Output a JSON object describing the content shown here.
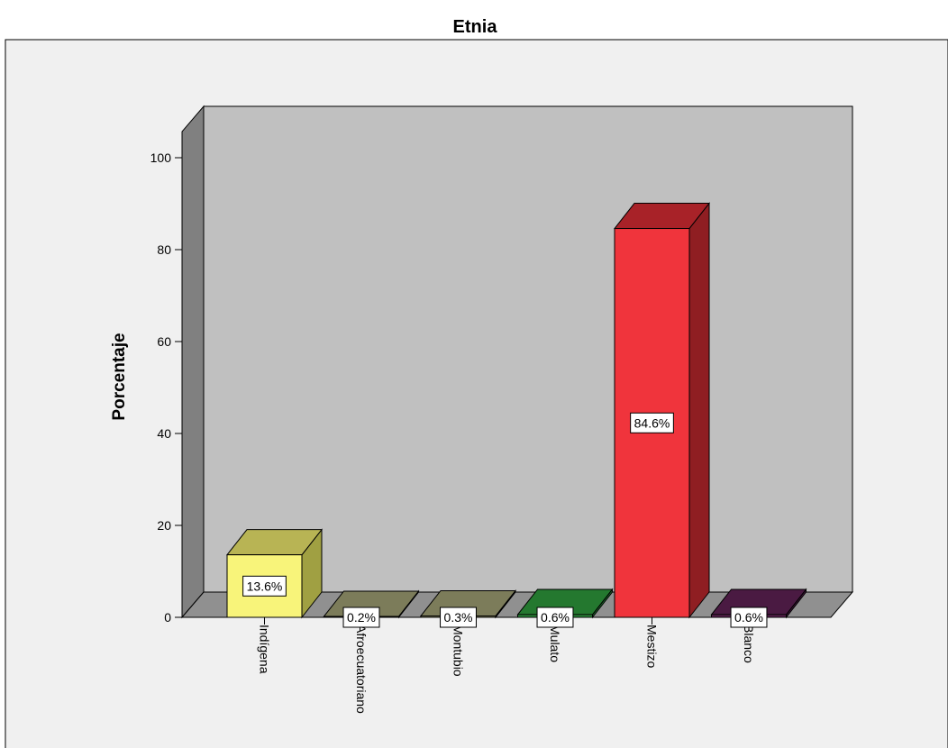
{
  "chart_data": {
    "type": "bar",
    "title": "Etnia",
    "xlabel": "",
    "ylabel": "Porcentaje",
    "ylim": [
      0,
      100
    ],
    "yticks": [
      0,
      20,
      40,
      60,
      80,
      100
    ],
    "grid": false,
    "legend": "none",
    "categories": [
      "Indígena",
      "Afroecuatoriano",
      "Montubio",
      "Mulato",
      "Mestizo",
      "Blanco"
    ],
    "values": [
      13.6,
      0.2,
      0.3,
      0.6,
      84.6,
      0.6
    ],
    "data_labels": [
      "13.6%",
      "0.2%",
      "0.3%",
      "0.6%",
      "84.6%",
      "0.6%"
    ],
    "colors": [
      "#f8f47a",
      "#8c8c64",
      "#8c8c64",
      "#2a8a3a",
      "#f0343c",
      "#5a2150"
    ],
    "side_colors": [
      "#a0a042",
      "#6a6a4c",
      "#6a6a4c",
      "#1d6a2c",
      "#8f1e22",
      "#3f1538"
    ],
    "top_colors": [
      "#b8b454",
      "#7c7c5a",
      "#7c7c5a",
      "#24782f",
      "#a82228",
      "#4a1a42"
    ],
    "wall_color": "#c0c0c0",
    "floor_color": "#909090",
    "frame_color": "#f0f0f0"
  }
}
